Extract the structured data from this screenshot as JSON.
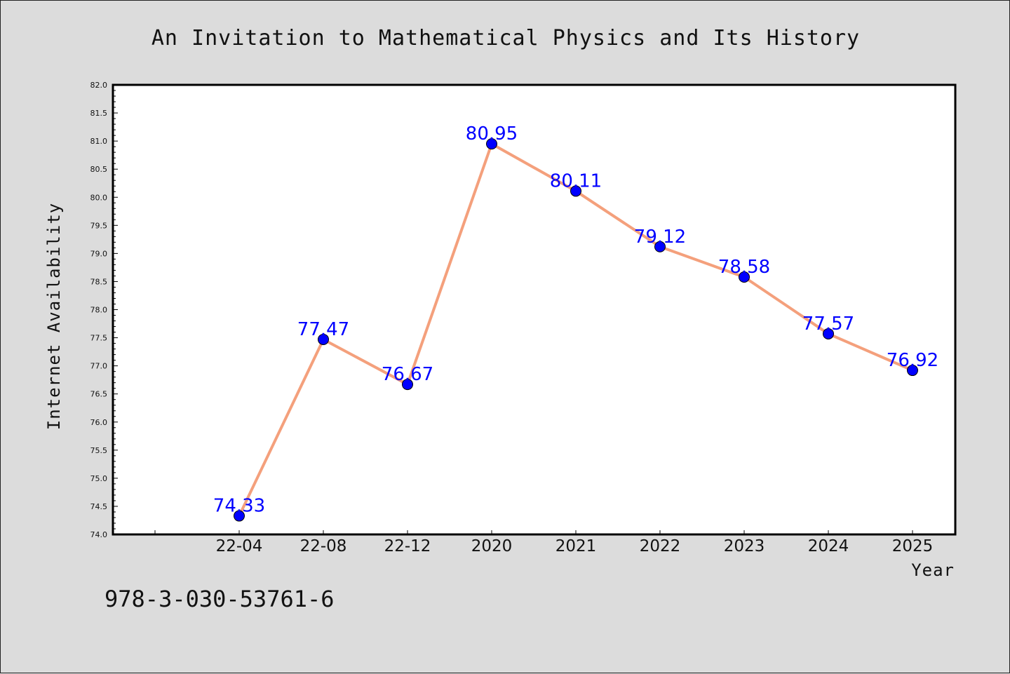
{
  "chart_data": {
    "type": "line",
    "title": "An Invitation to Mathematical Physics and Its History",
    "xlabel": "Year",
    "ylabel": "Internet Availability",
    "categories": [
      "22-04",
      "22-08",
      "22-12",
      "2020",
      "2021",
      "2022",
      "2023",
      "2024",
      "2025"
    ],
    "series": [
      {
        "values": [
          74.33,
          77.47,
          76.67,
          80.95,
          80.11,
          79.12,
          78.58,
          77.57,
          76.92
        ],
        "labels": [
          "74.33",
          "77.47",
          "76.67",
          "80.95",
          "80.11",
          "79.12",
          "78.58",
          "77.57",
          "76.92"
        ],
        "line_color": "#f4a07c",
        "marker_color": "#0000ff"
      }
    ],
    "ylim": [
      74.0,
      82.0
    ],
    "yticks": [
      "74.0",
      "74.5",
      "75.0",
      "75.5",
      "76.0",
      "76.5",
      "77.0",
      "77.5",
      "78.0",
      "78.5",
      "79.0",
      "79.5",
      "80.0",
      "80.5",
      "81.0",
      "81.5",
      "82.0"
    ],
    "grid": false,
    "legend": "none"
  },
  "footnote": "978-3-030-53761-6",
  "colors": {
    "background": "#dcdcdc",
    "plot_area": "#ffffff",
    "line": "#f4a07c",
    "marker": "#0000ff",
    "data_label": "#0000ff"
  }
}
